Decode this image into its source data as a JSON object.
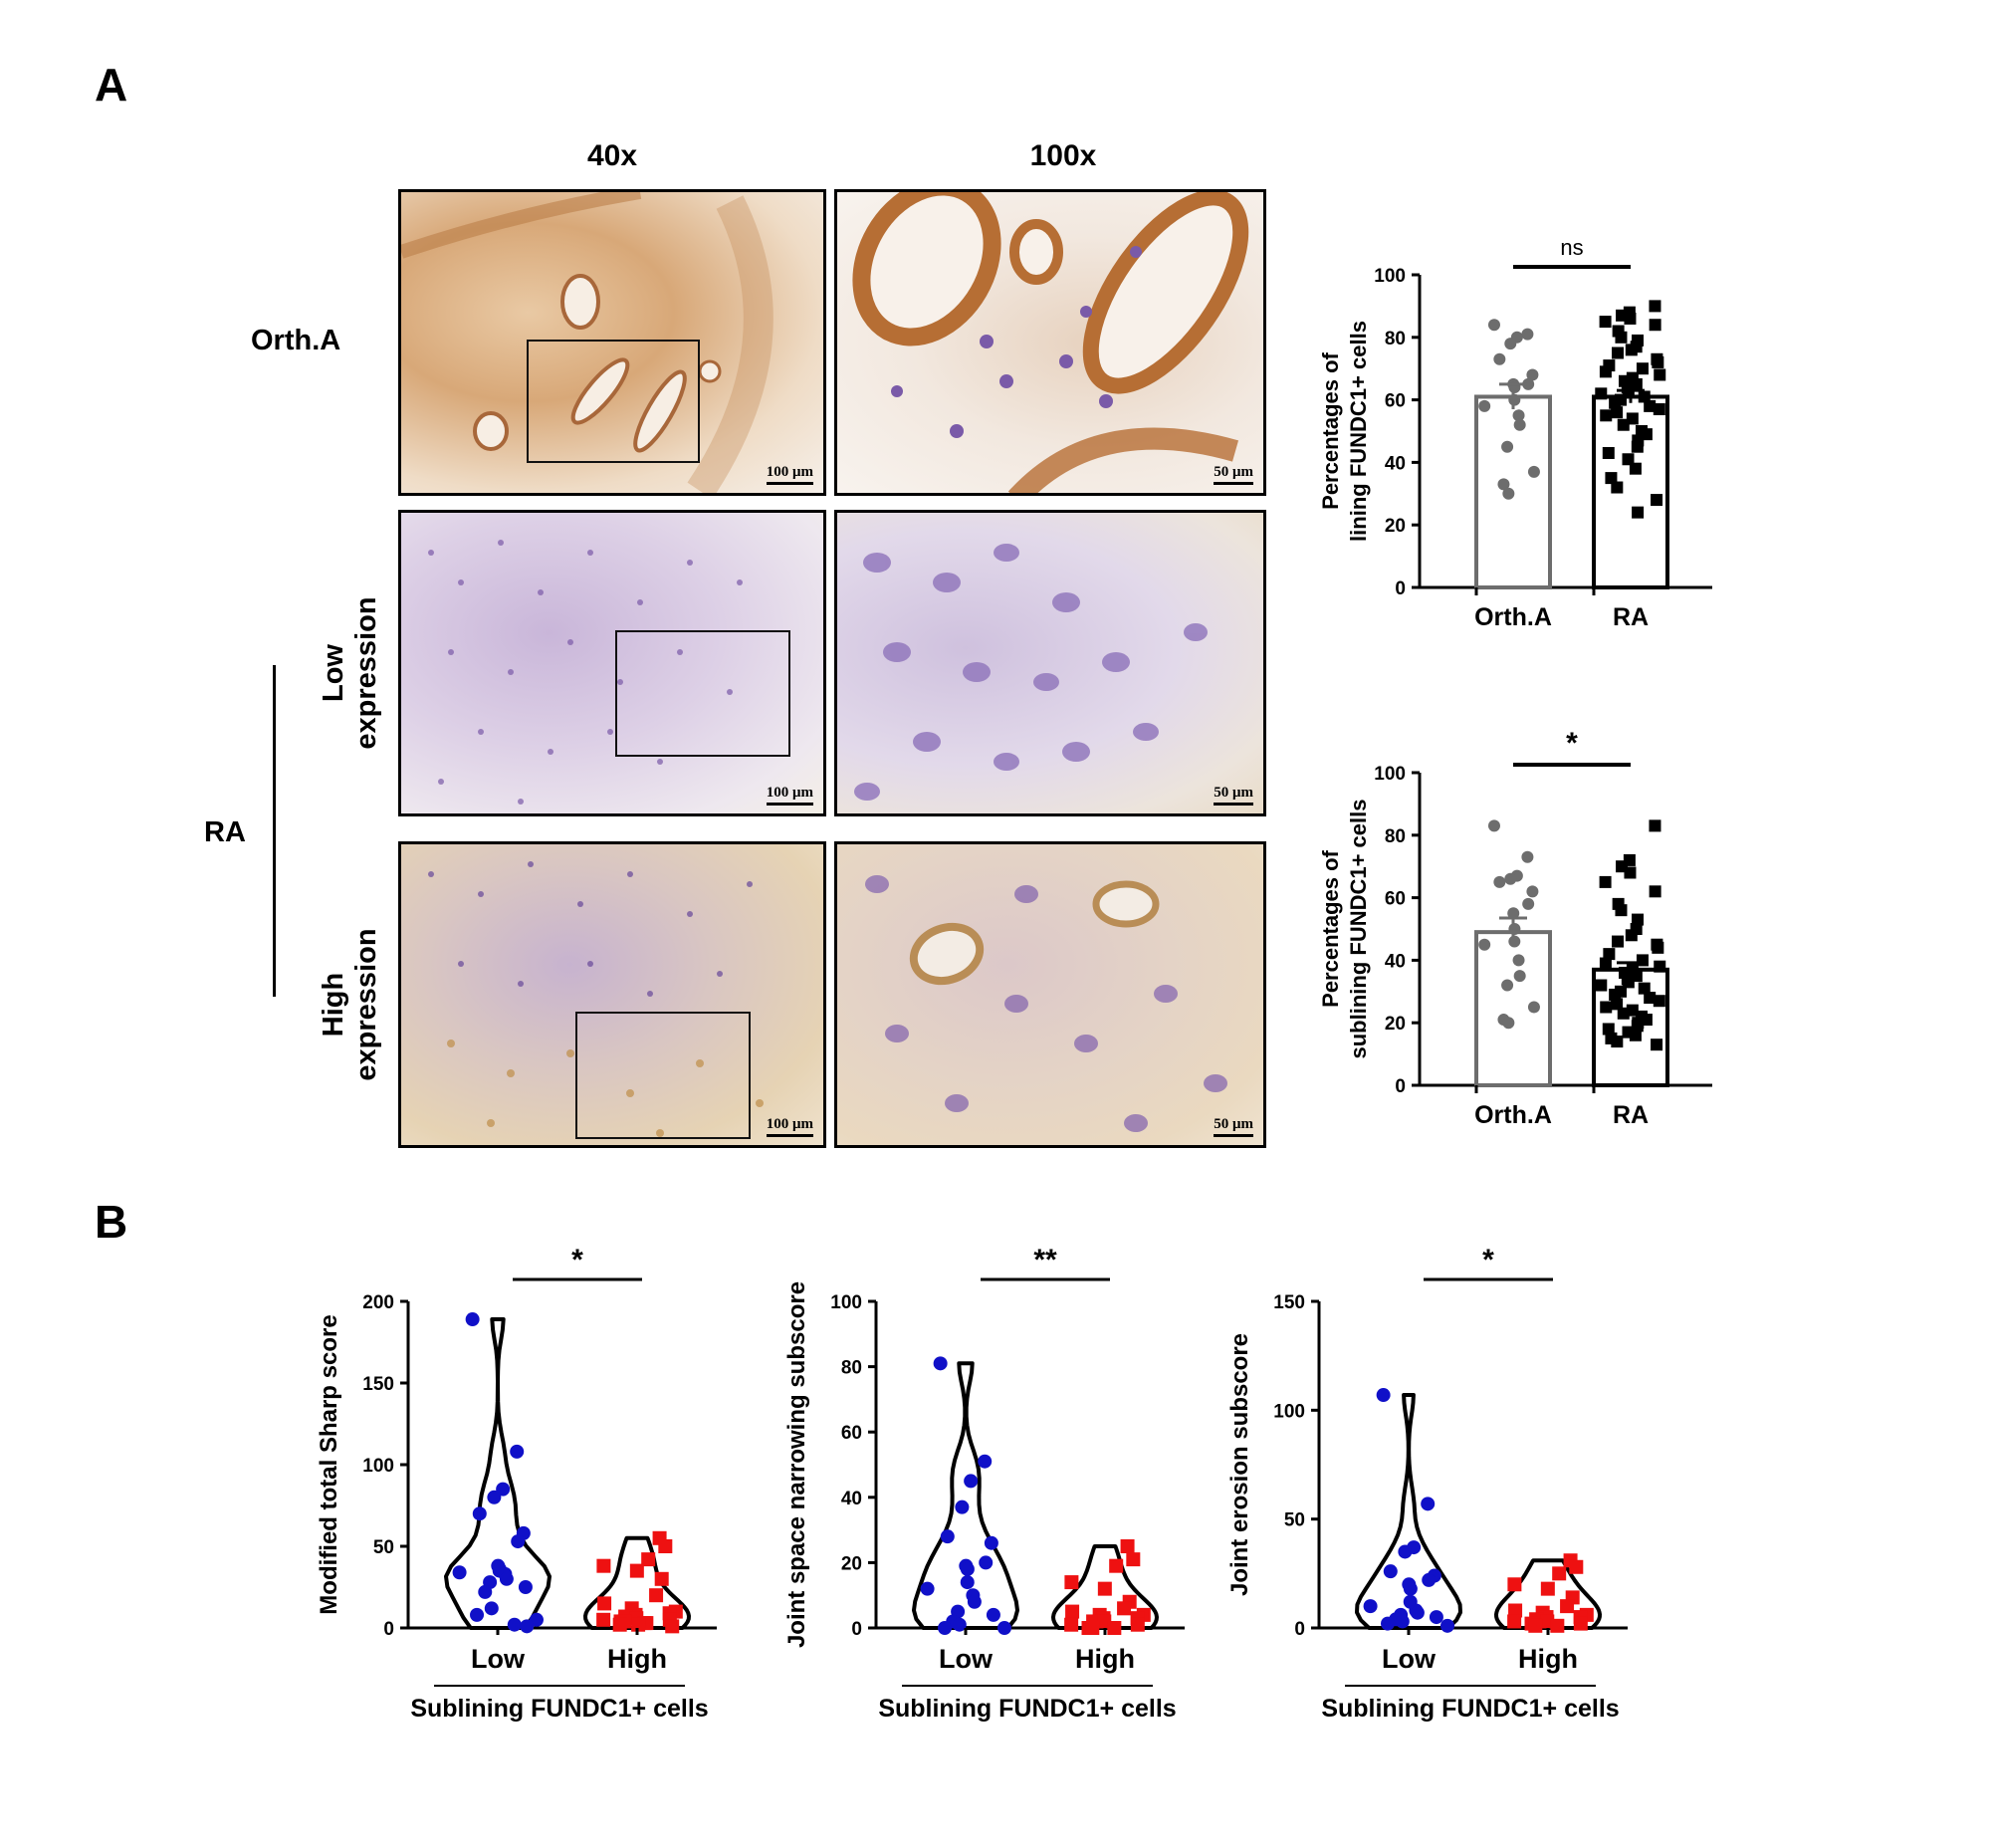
{
  "panel_a": {
    "letter": "A",
    "columns": [
      "40x",
      "100x"
    ],
    "rows": {
      "orth": "Orth.A",
      "ra": "RA",
      "low_line1": "Low",
      "low_line2": "expression",
      "high_line1": "High",
      "high_line2": "expression"
    },
    "scale_bars": {
      "s40": "100 μm",
      "s100": "50 μm"
    }
  },
  "panel_b": {
    "letter": "B"
  },
  "colors": {
    "orth_points": "#6d6d6d",
    "ra_points": "#000000",
    "low_points": "#1010c8",
    "high_points": "#ee1111"
  },
  "chart_data": [
    {
      "id": "lining",
      "type": "bar",
      "ylabel_line1": "Percentages of",
      "ylabel_line2": "lining FUNDC1+ cells",
      "categories": [
        "Orth.A",
        "RA"
      ],
      "ylim": [
        0,
        100
      ],
      "yticks": [
        0,
        20,
        40,
        60,
        80,
        100
      ],
      "significance": "ns",
      "series": [
        {
          "values": [
            61,
            61
          ]
        }
      ],
      "sem": [
        4,
        2
      ],
      "points": [
        [
          84,
          81,
          80,
          78,
          73,
          68,
          65,
          65,
          64,
          60,
          58,
          55,
          52,
          45,
          37,
          33,
          30
        ],
        [
          90,
          88,
          87,
          86,
          85,
          84,
          82,
          80,
          79,
          77,
          76,
          75,
          73,
          72,
          71,
          70,
          69,
          68,
          67,
          66,
          65,
          64,
          63,
          62,
          61,
          60,
          59,
          58,
          57,
          56,
          55,
          54,
          52,
          50,
          49,
          47,
          45,
          43,
          41,
          38,
          35,
          32,
          28,
          24
        ]
      ]
    },
    {
      "id": "sublining",
      "type": "bar",
      "ylabel_line1": "Percentages of",
      "ylabel_line2": "sublining FUNDC1+ cells",
      "categories": [
        "Orth.A",
        "RA"
      ],
      "ylim": [
        0,
        100
      ],
      "yticks": [
        0,
        20,
        40,
        60,
        80,
        100
      ],
      "significance": "*",
      "series": [
        {
          "values": [
            49,
            37
          ]
        }
      ],
      "sem": [
        4.5,
        2.2
      ],
      "points": [
        [
          83,
          73,
          67,
          66,
          65,
          62,
          58,
          55,
          50,
          46,
          45,
          40,
          35,
          32,
          25,
          21,
          20
        ],
        [
          83,
          72,
          70,
          68,
          65,
          62,
          58,
          56,
          53,
          50,
          48,
          46,
          45,
          44,
          42,
          40,
          39,
          38,
          37,
          36,
          35,
          34,
          33,
          32,
          31,
          30,
          29,
          28,
          27,
          26,
          25,
          24,
          23,
          22,
          21,
          20,
          19,
          18,
          17,
          16,
          15,
          14,
          13
        ]
      ]
    },
    {
      "id": "sharp",
      "type": "scatter",
      "ylabel": "Modified total Sharp score",
      "xlabel": "Sublining FUNDC1+ cells",
      "categories": [
        "Low",
        "High"
      ],
      "ylim": [
        0,
        200
      ],
      "yticks": [
        0,
        50,
        100,
        150,
        200
      ],
      "significance": "*",
      "points": [
        [
          189,
          108,
          85,
          80,
          70,
          58,
          53,
          38,
          36,
          35,
          34,
          33,
          30,
          28,
          25,
          22,
          12,
          8,
          5,
          2,
          1
        ],
        [
          55,
          50,
          42,
          38,
          35,
          30,
          20,
          15,
          12,
          10,
          9,
          8,
          7,
          6,
          5,
          5,
          4,
          4,
          3,
          3,
          2,
          2,
          1
        ]
      ]
    },
    {
      "id": "jsn",
      "type": "scatter",
      "ylabel": "Joint space narrowing subscore",
      "xlabel": "Sublining FUNDC1+ cells",
      "categories": [
        "Low",
        "High"
      ],
      "ylim": [
        0,
        100
      ],
      "yticks": [
        0,
        20,
        40,
        60,
        80,
        100
      ],
      "significance": "**",
      "points": [
        [
          81,
          51,
          45,
          37,
          28,
          26,
          20,
          19,
          18,
          14,
          12,
          10,
          8,
          5,
          4,
          2,
          1,
          0,
          0
        ],
        [
          25,
          21,
          19,
          14,
          12,
          8,
          6,
          5,
          4,
          4,
          3,
          3,
          2,
          2,
          1,
          1,
          0,
          0,
          0
        ]
      ]
    },
    {
      "id": "erosion",
      "type": "scatter",
      "ylabel": "Joint erosion subscore",
      "xlabel": "Sublining FUNDC1+ cells",
      "categories": [
        "Low",
        "High"
      ],
      "ylim": [
        0,
        150
      ],
      "yticks": [
        0,
        50,
        100,
        150
      ],
      "significance": "*",
      "points": [
        [
          107,
          57,
          37,
          35,
          26,
          24,
          22,
          20,
          18,
          12,
          10,
          8,
          7,
          6,
          5,
          4,
          3,
          2,
          1
        ],
        [
          31,
          28,
          25,
          20,
          18,
          14,
          10,
          8,
          7,
          6,
          5,
          5,
          4,
          3,
          3,
          2,
          2,
          1,
          1
        ]
      ]
    }
  ]
}
